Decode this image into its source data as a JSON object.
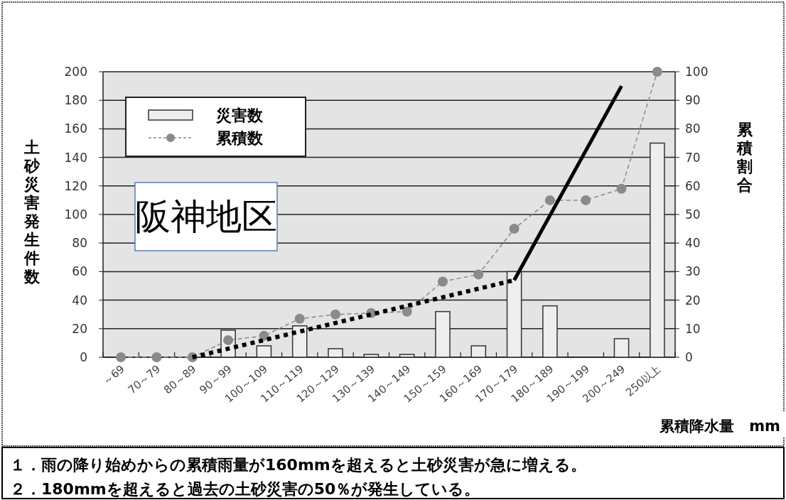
{
  "chart_data": {
    "type": "bar",
    "title": "阪神地区",
    "xlabel": "累積降水量　mm",
    "ylabel": "土砂災害発生件数",
    "y2label": "累積割合",
    "categories": [
      "～69",
      "70～79",
      "80～89",
      "90～99",
      "100～109",
      "110～119",
      "120～129",
      "130～139",
      "140～149",
      "150～159",
      "160～169",
      "170～179",
      "180～189",
      "190～199",
      "200～249",
      "250以上"
    ],
    "series": [
      {
        "name": "災害数",
        "color": "#eeeeee",
        "values": [
          0,
          0,
          0,
          19,
          8,
          22,
          6,
          2,
          2,
          32,
          8,
          60,
          36,
          0,
          13,
          150
        ]
      },
      {
        "name": "累積数",
        "type": "line",
        "axis": "y2",
        "color": "#8a8a8a",
        "marker": "circle",
        "line_style": "dashed",
        "values": [
          0,
          0,
          0,
          6,
          7.5,
          13.5,
          15,
          15.5,
          16,
          26.5,
          29,
          45,
          55,
          55,
          59,
          100
        ]
      },
      {
        "type": "line",
        "axis": "y2",
        "color": "#000000",
        "line_style": "dotted",
        "x": [
          "80～89",
          "170～179"
        ],
        "values": [
          0,
          27
        ]
      },
      {
        "type": "line",
        "axis": "y2",
        "color": "#000000",
        "line_style": "solid",
        "x": [
          "170～179",
          "200～249"
        ],
        "values": [
          27,
          95
        ]
      }
    ],
    "ylim": [
      0,
      200
    ],
    "yticks": [
      0,
      20,
      40,
      60,
      80,
      100,
      120,
      140,
      160,
      180,
      200
    ],
    "y2lim": [
      0,
      100
    ],
    "y2ticks": [
      0,
      10,
      20,
      30,
      40,
      50,
      60,
      70,
      80,
      90,
      100
    ],
    "grid": "y",
    "legend": "top left",
    "annotations": [
      "１．雨の降り始めからの累積雨量が160mmを超えると土砂災害が急に増える。",
      "２．180mmを超えると過去の土砂災害の50％が発生している。"
    ]
  }
}
